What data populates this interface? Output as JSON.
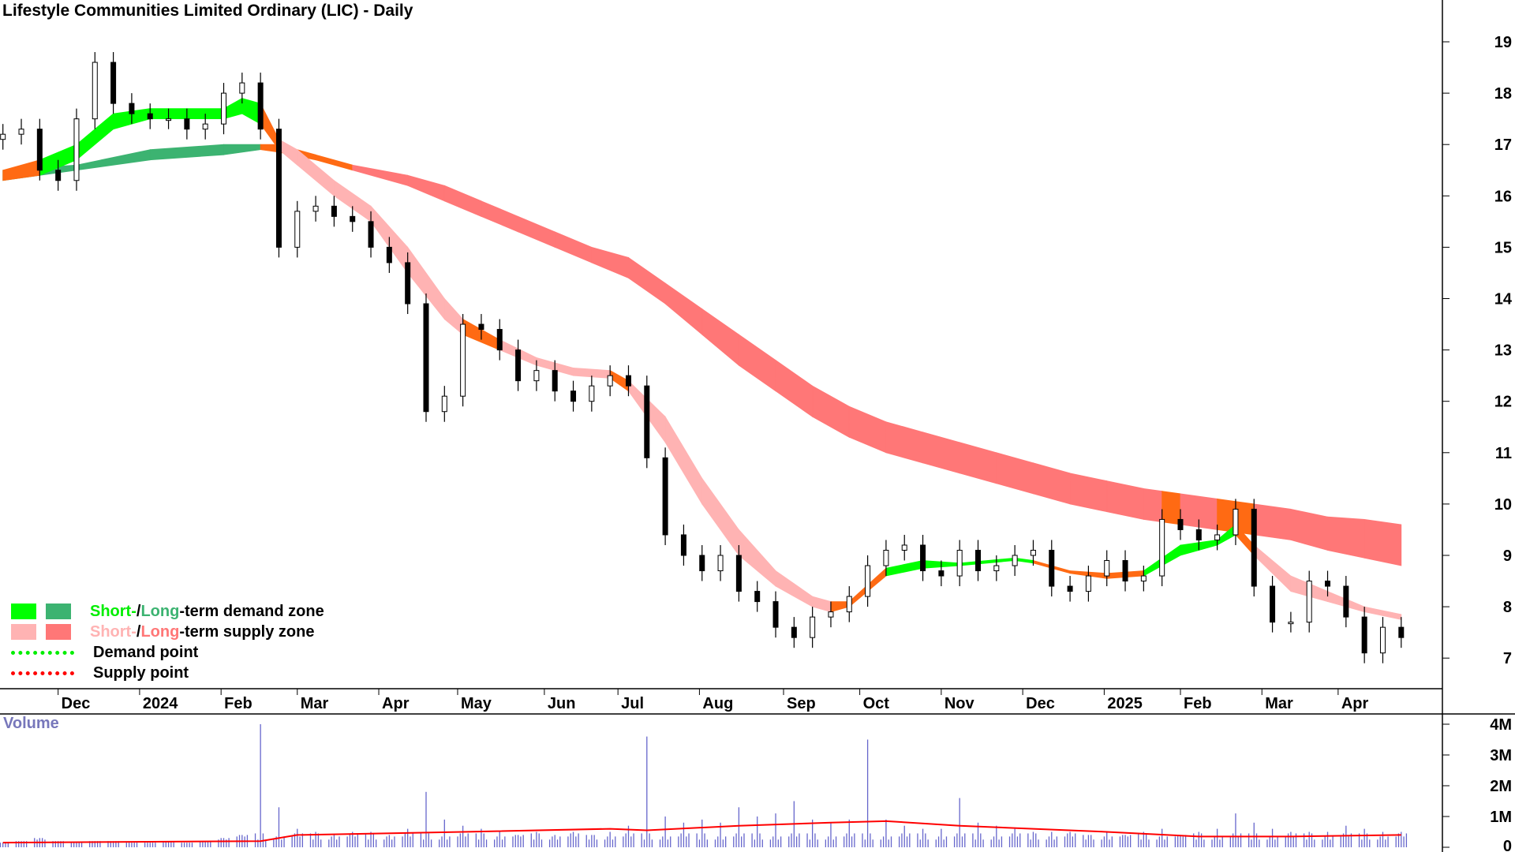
{
  "title": "Lifestyle Communities Limited Ordinary (LIC) - Daily",
  "legend": {
    "demand_zone": {
      "short": "Short-",
      "sep": " / ",
      "long": "Long",
      "rest": "-term demand zone"
    },
    "supply_zone": {
      "short": "Short-",
      "sep": " / ",
      "long": "Long",
      "rest": "-term supply zone"
    },
    "demand_point": "Demand point",
    "supply_point": "Supply point"
  },
  "volume_label": "Volume",
  "colors": {
    "short_demand": "#00ff00",
    "long_demand": "#3cb371",
    "short_supply": "#ffb3b3",
    "long_supply": "#ff7777",
    "transition": "#ff6a13",
    "demand_point": "#00ee00",
    "supply_point": "#ff0000",
    "volume_bar": "#6666cc",
    "volume_ma": "#ff0000",
    "volume_text": "#7777bb"
  },
  "chart_data": {
    "type": "candlestick",
    "title": "Lifestyle Communities Limited Ordinary (LIC) - Daily",
    "price_ylim": [
      6.5,
      19.6
    ],
    "price_ticks": [
      "7",
      "8",
      "9",
      "10",
      "11",
      "12",
      "13",
      "14",
      "15",
      "16",
      "17",
      "18",
      "19"
    ],
    "volume_ylim": [
      0,
      4.2
    ],
    "volume_ticks": [
      "0",
      "1M",
      "2M",
      "3M",
      "4M"
    ],
    "x_ticks": [
      {
        "date": "2023-12-01",
        "label": "Dec"
      },
      {
        "date": "2024-01-01",
        "label": "2024"
      },
      {
        "date": "2024-02-01",
        "label": "Feb"
      },
      {
        "date": "2024-03-01",
        "label": "Mar"
      },
      {
        "date": "2024-04-01",
        "label": "Apr"
      },
      {
        "date": "2024-05-01",
        "label": "May"
      },
      {
        "date": "2024-06-03",
        "label": "Jun"
      },
      {
        "date": "2024-07-01",
        "label": "Jul"
      },
      {
        "date": "2024-08-01",
        "label": "Aug"
      },
      {
        "date": "2024-09-02",
        "label": "Sep"
      },
      {
        "date": "2024-10-01",
        "label": "Oct"
      },
      {
        "date": "2024-11-01",
        "label": "Nov"
      },
      {
        "date": "2024-12-02",
        "label": "Dec"
      },
      {
        "date": "2025-01-02",
        "label": "2025"
      },
      {
        "date": "2025-01-31",
        "label": "Feb"
      },
      {
        "date": "2025-03-03",
        "label": "Mar"
      },
      {
        "date": "2025-04-01",
        "label": "Apr"
      }
    ],
    "closes": [
      [
        "2023-11-10",
        17.2
      ],
      [
        "2023-11-17",
        17.3
      ],
      [
        "2023-11-24",
        16.5
      ],
      [
        "2023-12-01",
        16.3
      ],
      [
        "2023-12-08",
        17.5
      ],
      [
        "2023-12-15",
        18.6
      ],
      [
        "2023-12-22",
        17.8
      ],
      [
        "2023-12-29",
        17.6
      ],
      [
        "2024-01-05",
        17.5
      ],
      [
        "2024-01-12",
        17.5
      ],
      [
        "2024-01-19",
        17.3
      ],
      [
        "2024-01-26",
        17.4
      ],
      [
        "2024-02-02",
        18.0
      ],
      [
        "2024-02-09",
        18.2
      ],
      [
        "2024-02-16",
        17.3
      ],
      [
        "2024-02-23",
        15.0
      ],
      [
        "2024-03-01",
        15.7
      ],
      [
        "2024-03-08",
        15.8
      ],
      [
        "2024-03-15",
        15.6
      ],
      [
        "2024-03-22",
        15.5
      ],
      [
        "2024-03-29",
        15.0
      ],
      [
        "2024-04-05",
        14.7
      ],
      [
        "2024-04-12",
        13.9
      ],
      [
        "2024-04-19",
        11.8
      ],
      [
        "2024-04-26",
        12.1
      ],
      [
        "2024-05-03",
        13.5
      ],
      [
        "2024-05-10",
        13.4
      ],
      [
        "2024-05-17",
        13.0
      ],
      [
        "2024-05-24",
        12.4
      ],
      [
        "2024-05-31",
        12.6
      ],
      [
        "2024-06-07",
        12.2
      ],
      [
        "2024-06-14",
        12.0
      ],
      [
        "2024-06-21",
        12.3
      ],
      [
        "2024-06-28",
        12.5
      ],
      [
        "2024-07-05",
        12.3
      ],
      [
        "2024-07-12",
        10.9
      ],
      [
        "2024-07-19",
        9.4
      ],
      [
        "2024-07-26",
        9.0
      ],
      [
        "2024-08-02",
        8.7
      ],
      [
        "2024-08-09",
        9.0
      ],
      [
        "2024-08-16",
        8.3
      ],
      [
        "2024-08-23",
        8.1
      ],
      [
        "2024-08-30",
        7.6
      ],
      [
        "2024-09-06",
        7.4
      ],
      [
        "2024-09-13",
        7.8
      ],
      [
        "2024-09-20",
        7.9
      ],
      [
        "2024-09-27",
        8.2
      ],
      [
        "2024-10-04",
        8.8
      ],
      [
        "2024-10-11",
        9.1
      ],
      [
        "2024-10-18",
        9.2
      ],
      [
        "2024-10-25",
        8.7
      ],
      [
        "2024-11-01",
        8.6
      ],
      [
        "2024-11-08",
        9.1
      ],
      [
        "2024-11-15",
        8.7
      ],
      [
        "2024-11-22",
        8.8
      ],
      [
        "2024-11-29",
        9.0
      ],
      [
        "2024-12-06",
        9.1
      ],
      [
        "2024-12-13",
        8.4
      ],
      [
        "2024-12-20",
        8.3
      ],
      [
        "2024-12-27",
        8.6
      ],
      [
        "2025-01-03",
        8.9
      ],
      [
        "2025-01-10",
        8.5
      ],
      [
        "2025-01-17",
        8.6
      ],
      [
        "2025-01-24",
        9.7
      ],
      [
        "2025-01-31",
        9.5
      ],
      [
        "2025-02-07",
        9.3
      ],
      [
        "2025-02-14",
        9.4
      ],
      [
        "2025-02-21",
        9.9
      ],
      [
        "2025-02-28",
        8.4
      ],
      [
        "2025-03-07",
        7.7
      ],
      [
        "2025-03-14",
        7.7
      ],
      [
        "2025-03-21",
        8.5
      ],
      [
        "2025-03-28",
        8.4
      ],
      [
        "2025-04-04",
        7.8
      ],
      [
        "2025-04-11",
        7.1
      ],
      [
        "2025-04-18",
        7.6
      ],
      [
        "2025-04-25",
        7.4
      ]
    ],
    "short_term_zone": [
      [
        "2023-11-10",
        16.3,
        16.5,
        "transition"
      ],
      [
        "2023-11-24",
        16.4,
        16.7,
        "demand"
      ],
      [
        "2023-12-08",
        16.7,
        17.0,
        "demand"
      ],
      [
        "2023-12-22",
        17.3,
        17.6,
        "demand"
      ],
      [
        "2024-01-05",
        17.5,
        17.7,
        "demand"
      ],
      [
        "2024-02-02",
        17.5,
        17.7,
        "demand"
      ],
      [
        "2024-02-09",
        17.6,
        17.9,
        "demand"
      ],
      [
        "2024-02-16",
        17.4,
        17.8,
        "transition"
      ],
      [
        "2024-02-23",
        16.9,
        17.1,
        "supply"
      ],
      [
        "2024-03-01",
        16.6,
        16.9,
        "supply"
      ],
      [
        "2024-03-15",
        16.0,
        16.3,
        "supply"
      ],
      [
        "2024-03-29",
        15.5,
        15.8,
        "supply"
      ],
      [
        "2024-04-12",
        14.5,
        15.0,
        "supply"
      ],
      [
        "2024-04-26",
        13.6,
        14.0,
        "supply"
      ],
      [
        "2024-05-03",
        13.3,
        13.6,
        "transition"
      ],
      [
        "2024-05-17",
        13.0,
        13.2,
        "supply"
      ],
      [
        "2024-05-31",
        12.7,
        12.85,
        "supply"
      ],
      [
        "2024-06-14",
        12.5,
        12.65,
        "supply"
      ],
      [
        "2024-06-28",
        12.45,
        12.6,
        "transition"
      ],
      [
        "2024-07-05",
        12.2,
        12.4,
        "supply"
      ],
      [
        "2024-07-19",
        11.2,
        11.7,
        "supply"
      ],
      [
        "2024-08-02",
        10.0,
        10.5,
        "supply"
      ],
      [
        "2024-08-16",
        9.0,
        9.5,
        "supply"
      ],
      [
        "2024-08-30",
        8.4,
        8.7,
        "supply"
      ],
      [
        "2024-09-13",
        8.0,
        8.2,
        "supply"
      ],
      [
        "2024-09-20",
        7.9,
        8.1,
        "transition"
      ],
      [
        "2024-09-27",
        8.0,
        8.1,
        "transition"
      ],
      [
        "2024-10-11",
        8.6,
        8.75,
        "demand"
      ],
      [
        "2024-10-25",
        8.75,
        8.9,
        "demand"
      ],
      [
        "2024-11-08",
        8.8,
        8.85,
        "demand"
      ],
      [
        "2024-11-29",
        8.9,
        8.95,
        "demand"
      ],
      [
        "2024-12-06",
        8.85,
        8.9,
        "transition"
      ],
      [
        "2024-12-20",
        8.65,
        8.7,
        "transition"
      ],
      [
        "2025-01-03",
        8.55,
        8.65,
        "transition"
      ],
      [
        "2025-01-17",
        8.6,
        8.7,
        "demand"
      ],
      [
        "2025-01-31",
        9.0,
        9.2,
        "demand"
      ],
      [
        "2025-02-14",
        9.2,
        9.3,
        "demand"
      ],
      [
        "2025-02-21",
        9.4,
        9.6,
        "transition"
      ],
      [
        "2025-02-28",
        9.0,
        9.2,
        "supply"
      ],
      [
        "2025-03-14",
        8.3,
        8.6,
        "supply"
      ],
      [
        "2025-03-28",
        8.1,
        8.3,
        "supply"
      ],
      [
        "2025-04-11",
        7.9,
        8.0,
        "supply"
      ],
      [
        "2025-04-25",
        7.75,
        7.85,
        "supply"
      ]
    ],
    "long_term_zone": [
      [
        "2023-11-10",
        16.3,
        16.5,
        "demand"
      ],
      [
        "2023-12-08",
        16.5,
        16.6,
        "demand"
      ],
      [
        "2024-01-05",
        16.7,
        16.9,
        "demand"
      ],
      [
        "2024-02-02",
        16.8,
        17.0,
        "demand"
      ],
      [
        "2024-02-16",
        16.9,
        17.0,
        "transition"
      ],
      [
        "2024-02-23",
        16.85,
        17.0,
        "transition"
      ],
      [
        "2024-03-08",
        16.7,
        16.8,
        "transition"
      ],
      [
        "2024-03-22",
        16.5,
        16.6,
        "supply"
      ],
      [
        "2024-04-12",
        16.2,
        16.4,
        "supply"
      ],
      [
        "2024-04-26",
        15.9,
        16.2,
        "supply"
      ],
      [
        "2024-05-10",
        15.6,
        15.9,
        "supply"
      ],
      [
        "2024-05-24",
        15.3,
        15.6,
        "supply"
      ],
      [
        "2024-06-07",
        15.0,
        15.3,
        "supply"
      ],
      [
        "2024-06-21",
        14.7,
        15.0,
        "supply"
      ],
      [
        "2024-07-05",
        14.4,
        14.8,
        "supply"
      ],
      [
        "2024-07-19",
        13.9,
        14.3,
        "supply"
      ],
      [
        "2024-08-02",
        13.3,
        13.8,
        "supply"
      ],
      [
        "2024-08-16",
        12.7,
        13.3,
        "supply"
      ],
      [
        "2024-08-30",
        12.2,
        12.8,
        "supply"
      ],
      [
        "2024-09-13",
        11.7,
        12.3,
        "supply"
      ],
      [
        "2024-09-27",
        11.3,
        11.9,
        "supply"
      ],
      [
        "2024-10-11",
        11.0,
        11.6,
        "supply"
      ],
      [
        "2024-10-25",
        10.8,
        11.4,
        "supply"
      ],
      [
        "2024-11-08",
        10.6,
        11.2,
        "supply"
      ],
      [
        "2024-11-22",
        10.4,
        11.0,
        "supply"
      ],
      [
        "2024-12-06",
        10.2,
        10.8,
        "supply"
      ],
      [
        "2024-12-20",
        10.0,
        10.6,
        "supply"
      ],
      [
        "2025-01-03",
        9.85,
        10.45,
        "supply"
      ],
      [
        "2025-01-17",
        9.7,
        10.3,
        "supply"
      ],
      [
        "2025-01-24",
        9.65,
        10.25,
        "transition"
      ],
      [
        "2025-01-31",
        9.6,
        10.2,
        "supply"
      ],
      [
        "2025-02-14",
        9.5,
        10.1,
        "transition"
      ],
      [
        "2025-02-28",
        9.4,
        10.0,
        "supply"
      ],
      [
        "2025-03-14",
        9.3,
        9.9,
        "supply"
      ],
      [
        "2025-03-28",
        9.1,
        9.75,
        "supply"
      ],
      [
        "2025-04-11",
        8.95,
        9.7,
        "supply"
      ],
      [
        "2025-04-25",
        8.8,
        9.6,
        "supply"
      ]
    ],
    "volume_millions": [
      0.15,
      0.2,
      0.3,
      0.2,
      0.15,
      0.2,
      0.2,
      0.15,
      0.15,
      0.2,
      0.15,
      0.2,
      0.3,
      0.4,
      4.0,
      1.3,
      0.6,
      0.5,
      0.4,
      0.5,
      0.5,
      0.4,
      0.6,
      1.8,
      0.9,
      0.7,
      0.6,
      0.5,
      0.4,
      0.5,
      0.4,
      0.5,
      0.4,
      0.5,
      0.7,
      3.6,
      1.0,
      0.8,
      0.9,
      0.8,
      1.3,
      1.0,
      1.1,
      1.5,
      0.9,
      0.8,
      0.9,
      3.5,
      0.9,
      0.7,
      0.6,
      0.6,
      1.6,
      0.8,
      0.7,
      0.6,
      0.5,
      0.5,
      0.5,
      0.4,
      0.5,
      0.4,
      0.5,
      0.6,
      0.4,
      0.5,
      0.6,
      1.1,
      0.8,
      0.6,
      0.5,
      0.5,
      0.5,
      0.7,
      0.6,
      0.5,
      0.5
    ],
    "volume_ma_millions": [
      [
        "2023-11-10",
        0.15
      ],
      [
        "2024-02-16",
        0.2
      ],
      [
        "2024-03-01",
        0.4
      ],
      [
        "2024-05-03",
        0.5
      ],
      [
        "2024-06-28",
        0.6
      ],
      [
        "2024-07-12",
        0.55
      ],
      [
        "2024-08-16",
        0.7
      ],
      [
        "2024-09-20",
        0.8
      ],
      [
        "2024-10-11",
        0.85
      ],
      [
        "2024-11-08",
        0.7
      ],
      [
        "2024-12-06",
        0.6
      ],
      [
        "2025-01-03",
        0.5
      ],
      [
        "2025-02-07",
        0.35
      ],
      [
        "2025-03-14",
        0.35
      ],
      [
        "2025-04-25",
        0.4
      ]
    ]
  }
}
